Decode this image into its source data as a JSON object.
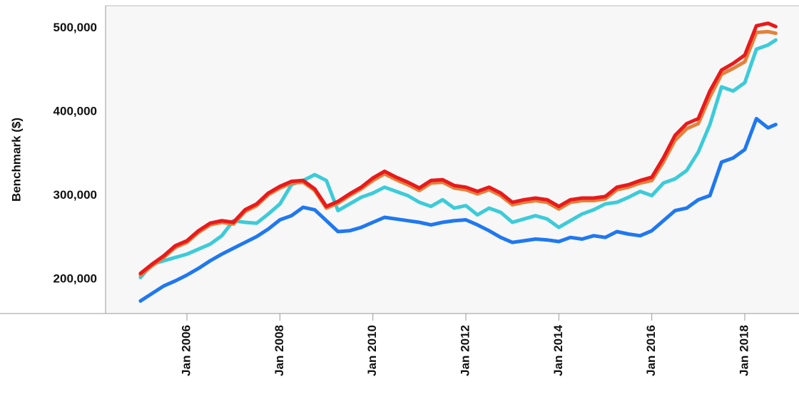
{
  "chart_data": {
    "type": "line",
    "y_label": "Benchmark ($)",
    "x": [
      "2005-01",
      "2005-04",
      "2005-07",
      "2005-10",
      "2006-01",
      "2006-04",
      "2006-07",
      "2006-10",
      "2007-01",
      "2007-04",
      "2007-07",
      "2007-10",
      "2008-01",
      "2008-04",
      "2008-07",
      "2008-10",
      "2009-01",
      "2009-04",
      "2009-07",
      "2009-10",
      "2010-01",
      "2010-04",
      "2010-07",
      "2010-10",
      "2011-01",
      "2011-04",
      "2011-07",
      "2011-10",
      "2012-01",
      "2012-04",
      "2012-07",
      "2012-10",
      "2013-01",
      "2013-04",
      "2013-07",
      "2013-10",
      "2014-01",
      "2014-04",
      "2014-07",
      "2014-10",
      "2015-01",
      "2015-04",
      "2015-07",
      "2015-10",
      "2016-01",
      "2016-04",
      "2016-07",
      "2016-10",
      "2017-01",
      "2017-04",
      "2017-07",
      "2017-10",
      "2018-01",
      "2018-04",
      "2018-07",
      "2018-09"
    ],
    "series": [
      {
        "color": "#1f78f0",
        "values": [
          174000,
          183000,
          192000,
          198000,
          205000,
          213000,
          222000,
          230000,
          237000,
          244000,
          251000,
          260000,
          271000,
          276000,
          286000,
          283000,
          270000,
          257000,
          258000,
          262000,
          268000,
          274000,
          272000,
          270000,
          268000,
          265000,
          268000,
          270000,
          271000,
          265000,
          258000,
          250000,
          244000,
          246000,
          248000,
          247000,
          245000,
          250000,
          248000,
          252000,
          250000,
          257000,
          254000,
          252000,
          258000,
          270000,
          282000,
          285000,
          295000,
          300000,
          340000,
          345000,
          355000,
          392000,
          381000,
          385000
        ]
      },
      {
        "color": "#3ccbd9",
        "values": [
          202000,
          218000,
          222000,
          226000,
          230000,
          236000,
          242000,
          252000,
          270000,
          268000,
          267000,
          278000,
          290000,
          313000,
          318000,
          325000,
          318000,
          282000,
          290000,
          298000,
          303000,
          310000,
          305000,
          300000,
          292000,
          287000,
          295000,
          285000,
          288000,
          277000,
          285000,
          280000,
          268000,
          272000,
          276000,
          272000,
          262000,
          270000,
          278000,
          283000,
          290000,
          292000,
          298000,
          305000,
          300000,
          315000,
          320000,
          330000,
          352000,
          385000,
          430000,
          425000,
          435000,
          475000,
          480000,
          486000
        ]
      },
      {
        "color": "#e3823a",
        "values": [
          205000,
          216000,
          226000,
          238000,
          244000,
          256000,
          265000,
          268000,
          266000,
          281000,
          288000,
          301000,
          309000,
          315000,
          316000,
          306000,
          285000,
          291000,
          300000,
          308000,
          318000,
          326000,
          319000,
          313000,
          306000,
          315000,
          316000,
          309000,
          307000,
          302000,
          307000,
          300000,
          289000,
          292000,
          294000,
          292000,
          284000,
          292000,
          294000,
          294000,
          296000,
          307000,
          310000,
          315000,
          318000,
          340000,
          366000,
          380000,
          386000,
          418000,
          445000,
          452000,
          460000,
          495000,
          496000,
          494000
        ]
      },
      {
        "color": "#e81a1c",
        "values": [
          207000,
          218000,
          228000,
          240000,
          246000,
          258000,
          267000,
          270000,
          268000,
          283000,
          290000,
          303000,
          311000,
          317000,
          318000,
          308000,
          287000,
          293000,
          302000,
          310000,
          321000,
          329000,
          322000,
          316000,
          309000,
          318000,
          319000,
          312000,
          310000,
          305000,
          310000,
          303000,
          292000,
          295000,
          297000,
          295000,
          287000,
          295000,
          297000,
          297000,
          299000,
          310000,
          313000,
          318000,
          322000,
          345000,
          372000,
          386000,
          392000,
          425000,
          450000,
          458000,
          468000,
          503000,
          506000,
          502000
        ]
      }
    ],
    "xlim": [
      "2004-04",
      "2019-03"
    ],
    "xticks": [
      {
        "value": "2006-01",
        "label": "Jan 2006"
      },
      {
        "value": "2008-01",
        "label": "Jan 2008"
      },
      {
        "value": "2010-01",
        "label": "Jan 2010"
      },
      {
        "value": "2012-01",
        "label": "Jan 2012"
      },
      {
        "value": "2014-01",
        "label": "Jan 2014"
      },
      {
        "value": "2016-01",
        "label": "Jan 2016"
      },
      {
        "value": "2018-01",
        "label": "Jan 2018"
      }
    ],
    "ylim": [
      159000,
      527000
    ],
    "yticks": [
      {
        "value": 200000,
        "label": "200,000"
      },
      {
        "value": 300000,
        "label": "300,000"
      },
      {
        "value": 400000,
        "label": "400,000"
      },
      {
        "value": 500000,
        "label": "500,000"
      }
    ],
    "grid": false
  }
}
